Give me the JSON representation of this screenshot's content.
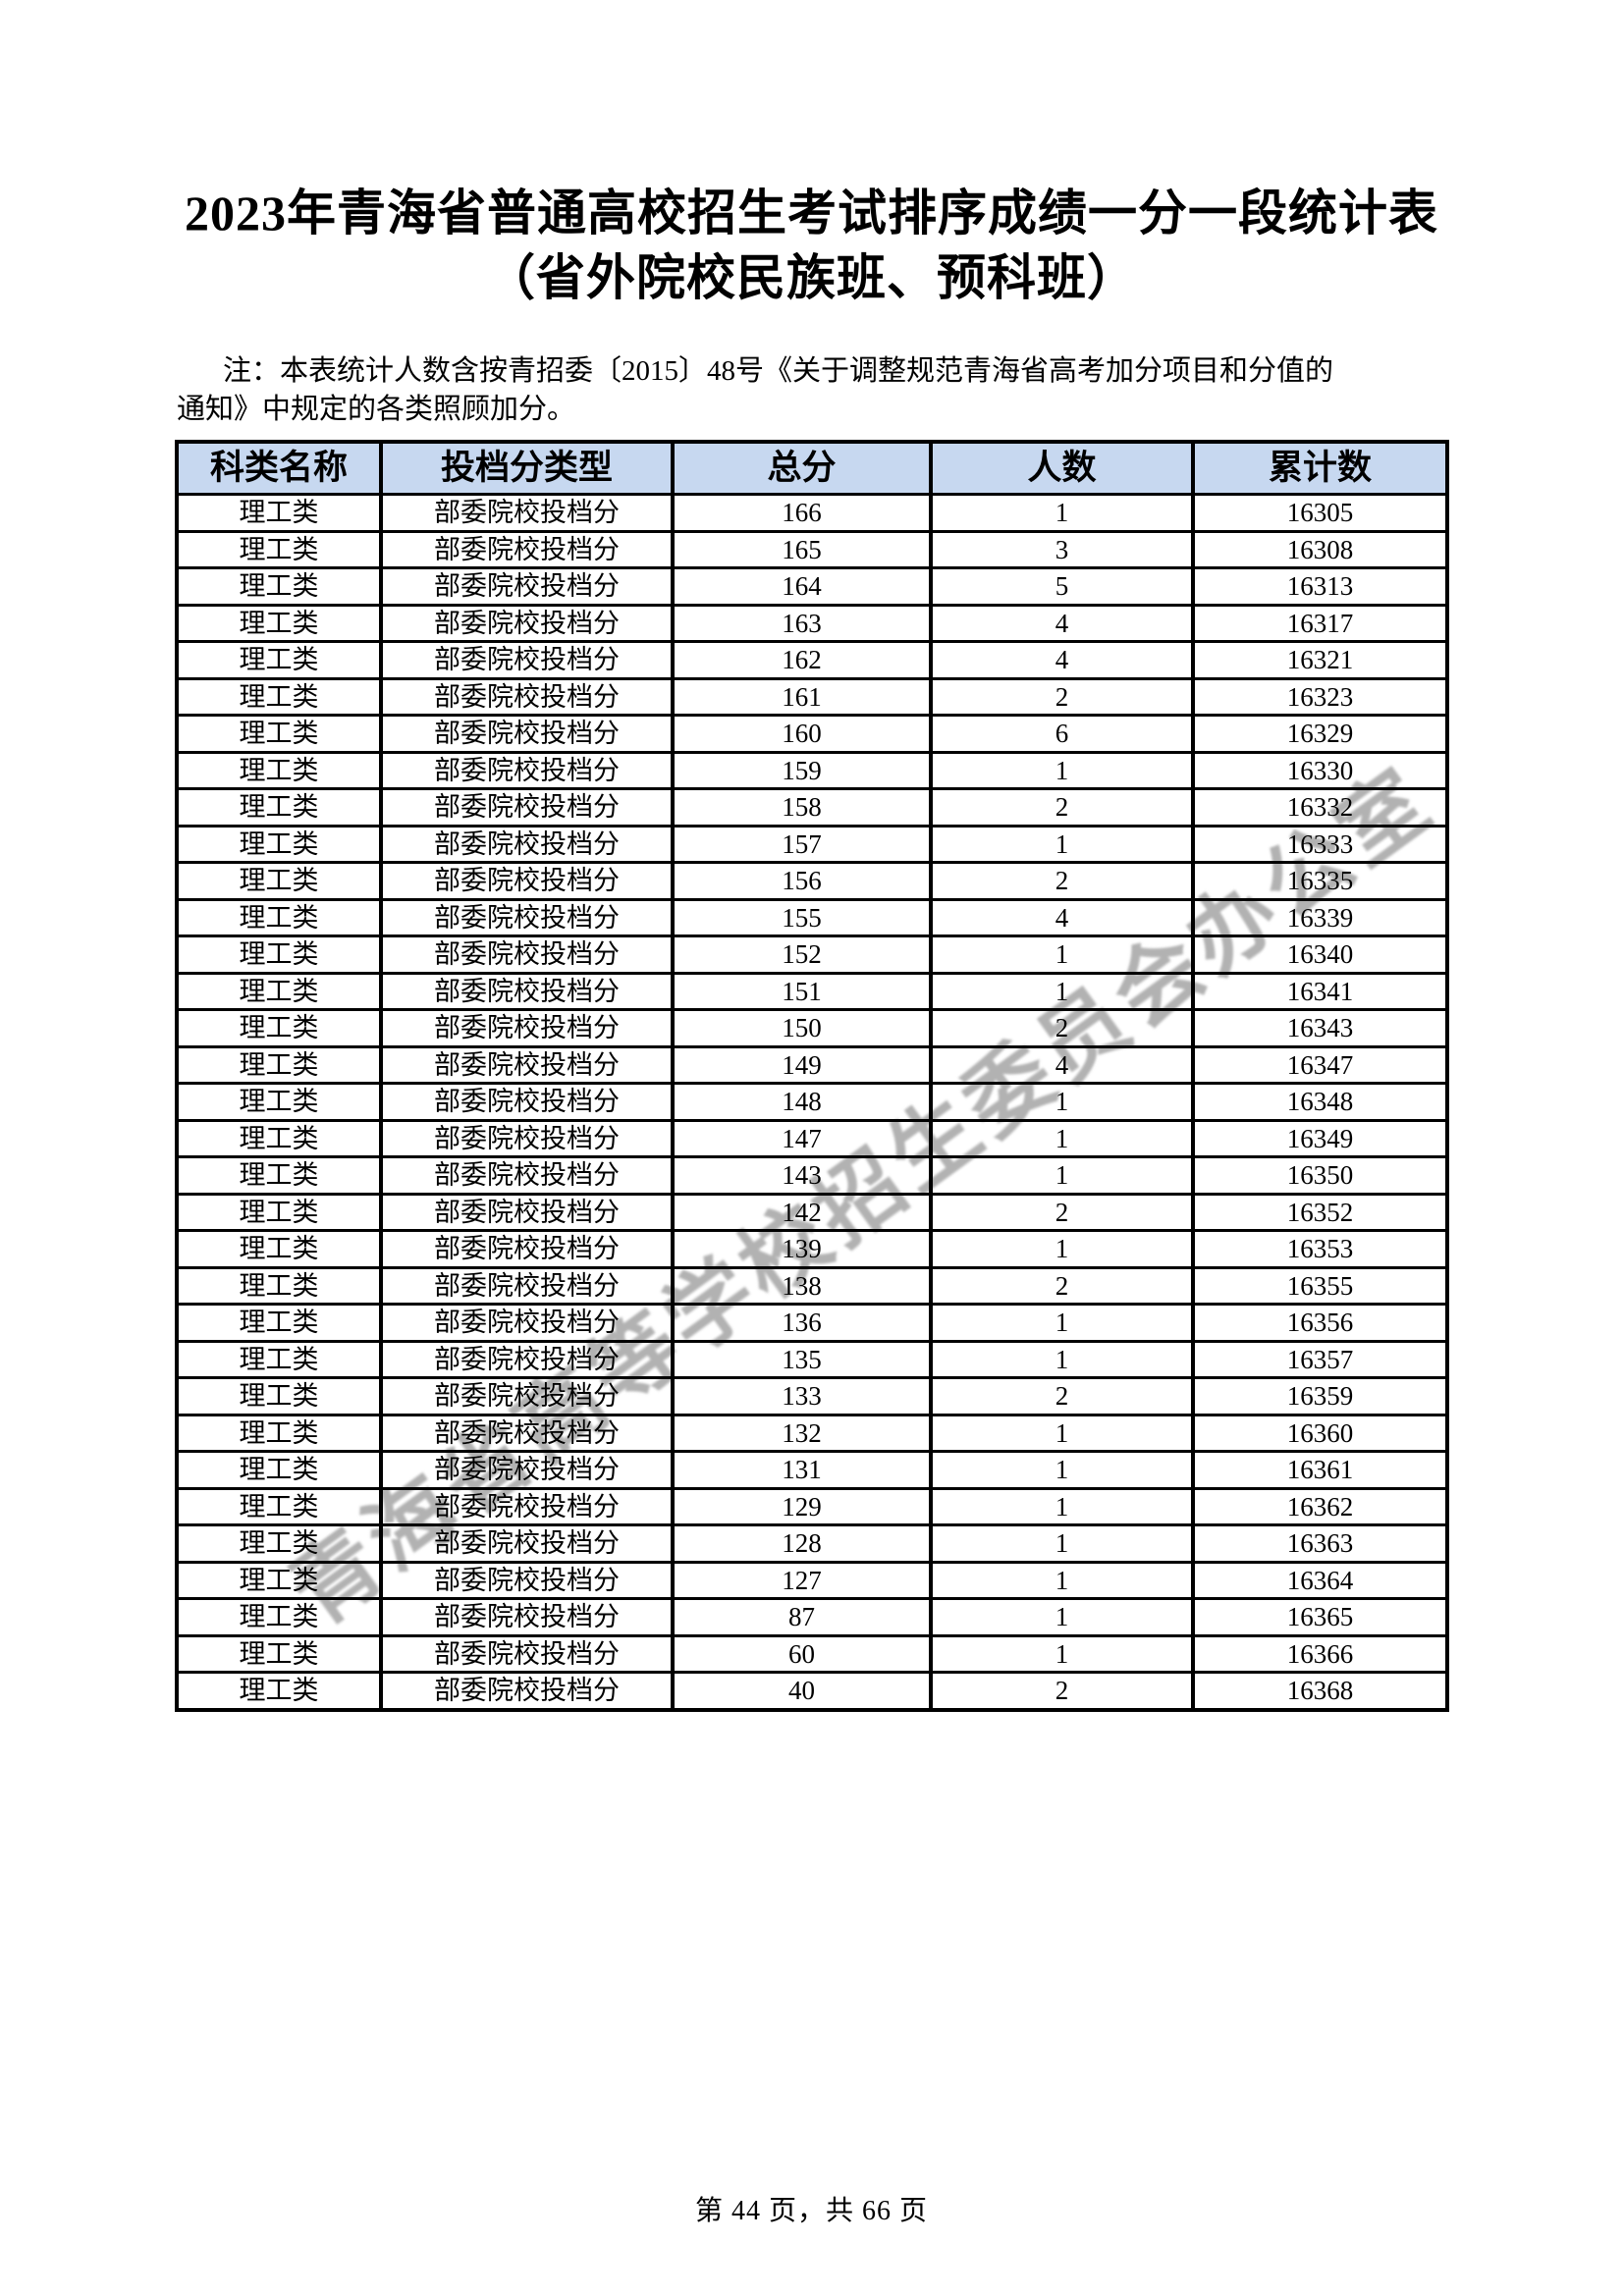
{
  "page": {
    "title_line1": "2023年青海省普通高校招生考试排序成绩一分一段统计表",
    "title_line2": "（省外院校民族班、预科班）",
    "note_line1": "注：本表统计人数含按青招委〔2015〕48号《关于调整规范青海省高考加分项目和分值的",
    "note_line2": "通知》中规定的各类照顾加分。",
    "watermark": "青海省高等学校招生委员会办公室",
    "footer": "第 44 页，共 66 页"
  },
  "colors": {
    "header_bg": "#C7D8F0",
    "border": "#000000",
    "watermark": "#7A7A7A"
  },
  "table": {
    "columns": [
      "科类名称",
      "投档分类型",
      "总分",
      "人数",
      "累计数"
    ],
    "rows": [
      [
        "理工类",
        "部委院校投档分",
        "166",
        "1",
        "16305"
      ],
      [
        "理工类",
        "部委院校投档分",
        "165",
        "3",
        "16308"
      ],
      [
        "理工类",
        "部委院校投档分",
        "164",
        "5",
        "16313"
      ],
      [
        "理工类",
        "部委院校投档分",
        "163",
        "4",
        "16317"
      ],
      [
        "理工类",
        "部委院校投档分",
        "162",
        "4",
        "16321"
      ],
      [
        "理工类",
        "部委院校投档分",
        "161",
        "2",
        "16323"
      ],
      [
        "理工类",
        "部委院校投档分",
        "160",
        "6",
        "16329"
      ],
      [
        "理工类",
        "部委院校投档分",
        "159",
        "1",
        "16330"
      ],
      [
        "理工类",
        "部委院校投档分",
        "158",
        "2",
        "16332"
      ],
      [
        "理工类",
        "部委院校投档分",
        "157",
        "1",
        "16333"
      ],
      [
        "理工类",
        "部委院校投档分",
        "156",
        "2",
        "16335"
      ],
      [
        "理工类",
        "部委院校投档分",
        "155",
        "4",
        "16339"
      ],
      [
        "理工类",
        "部委院校投档分",
        "152",
        "1",
        "16340"
      ],
      [
        "理工类",
        "部委院校投档分",
        "151",
        "1",
        "16341"
      ],
      [
        "理工类",
        "部委院校投档分",
        "150",
        "2",
        "16343"
      ],
      [
        "理工类",
        "部委院校投档分",
        "149",
        "4",
        "16347"
      ],
      [
        "理工类",
        "部委院校投档分",
        "148",
        "1",
        "16348"
      ],
      [
        "理工类",
        "部委院校投档分",
        "147",
        "1",
        "16349"
      ],
      [
        "理工类",
        "部委院校投档分",
        "143",
        "1",
        "16350"
      ],
      [
        "理工类",
        "部委院校投档分",
        "142",
        "2",
        "16352"
      ],
      [
        "理工类",
        "部委院校投档分",
        "139",
        "1",
        "16353"
      ],
      [
        "理工类",
        "部委院校投档分",
        "138",
        "2",
        "16355"
      ],
      [
        "理工类",
        "部委院校投档分",
        "136",
        "1",
        "16356"
      ],
      [
        "理工类",
        "部委院校投档分",
        "135",
        "1",
        "16357"
      ],
      [
        "理工类",
        "部委院校投档分",
        "133",
        "2",
        "16359"
      ],
      [
        "理工类",
        "部委院校投档分",
        "132",
        "1",
        "16360"
      ],
      [
        "理工类",
        "部委院校投档分",
        "131",
        "1",
        "16361"
      ],
      [
        "理工类",
        "部委院校投档分",
        "129",
        "1",
        "16362"
      ],
      [
        "理工类",
        "部委院校投档分",
        "128",
        "1",
        "16363"
      ],
      [
        "理工类",
        "部委院校投档分",
        "127",
        "1",
        "16364"
      ],
      [
        "理工类",
        "部委院校投档分",
        "87",
        "1",
        "16365"
      ],
      [
        "理工类",
        "部委院校投档分",
        "60",
        "1",
        "16366"
      ],
      [
        "理工类",
        "部委院校投档分",
        "40",
        "2",
        "16368"
      ]
    ]
  }
}
